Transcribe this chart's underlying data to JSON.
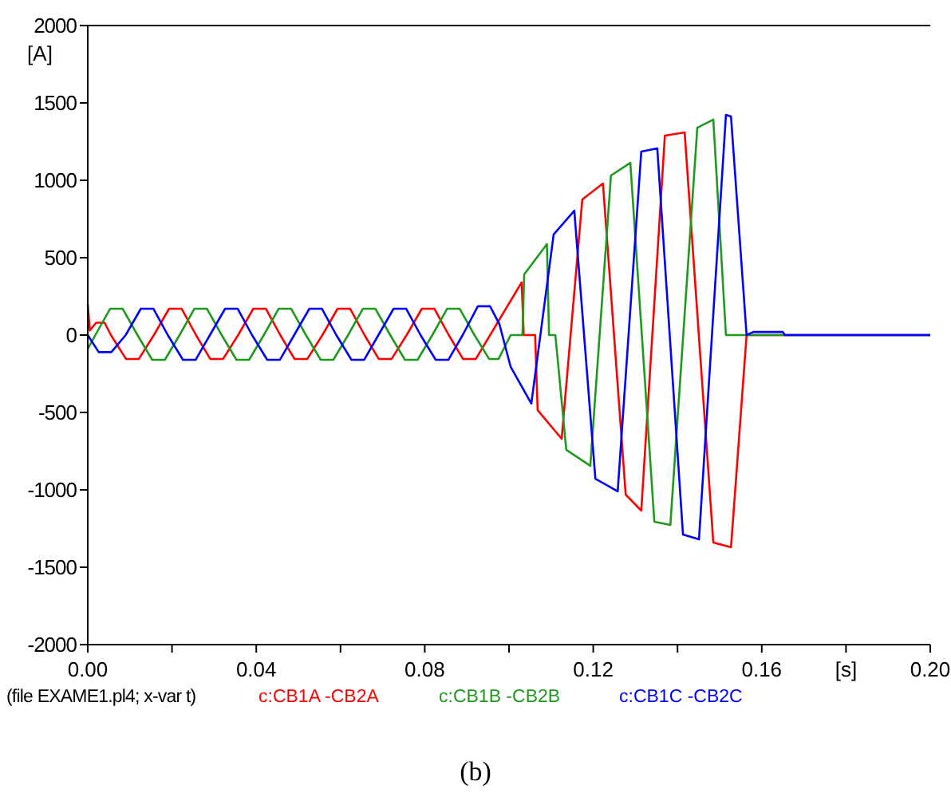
{
  "chart_data": {
    "type": "line",
    "xlabel": "[s]",
    "ylabel": "[A]",
    "xlim": [
      0,
      0.2
    ],
    "ylim": [
      -2000,
      2000
    ],
    "xticks": [
      {
        "value": 0,
        "label": "0.00"
      },
      {
        "value": 0.02,
        "label": null
      },
      {
        "value": 0.04,
        "label": "0.04"
      },
      {
        "value": 0.06,
        "label": null
      },
      {
        "value": 0.08,
        "label": "0.08"
      },
      {
        "value": 0.1,
        "label": null
      },
      {
        "value": 0.12,
        "label": "0.12"
      },
      {
        "value": 0.14,
        "label": null
      },
      {
        "value": 0.16,
        "label": "0.16"
      },
      {
        "value": 0.18,
        "label": null
      },
      {
        "value": 0.2,
        "label": "0.20"
      }
    ],
    "yticks": [
      -2000,
      -1500,
      -1000,
      -500,
      0,
      500,
      1000,
      1500,
      2000
    ],
    "grid": false,
    "legend": "bottom",
    "marker": "none",
    "line_style": "solid",
    "annotations": [
      "(file EXAME1.pl4; x-var t)",
      "(b)"
    ],
    "series": [
      {
        "name": "c:CB1A -CB2A",
        "color": "#ff0000",
        "x": [
          0,
          0.0005,
          0.002,
          0.004,
          0.0055,
          0.0091,
          0.0121,
          0.0157,
          0.0193,
          0.0223,
          0.0257,
          0.0291,
          0.0321,
          0.0357,
          0.0393,
          0.0423,
          0.0457,
          0.0491,
          0.0521,
          0.0557,
          0.0593,
          0.0623,
          0.0657,
          0.0691,
          0.0721,
          0.0757,
          0.0793,
          0.0823,
          0.0857,
          0.0891,
          0.0921,
          0.103,
          0.1035,
          0.1062,
          0.1068,
          0.1125,
          0.1174,
          0.1223,
          0.1277,
          0.1314,
          0.137,
          0.1417,
          0.1485,
          0.1527,
          0.1564,
          0.2
        ],
        "values": [
          200,
          30,
          80,
          80,
          0,
          -155,
          -155,
          0,
          170,
          170,
          0,
          -155,
          -155,
          0,
          170,
          170,
          0,
          -155,
          -155,
          0,
          170,
          170,
          0,
          -155,
          -155,
          0,
          170,
          170,
          0,
          -155,
          -155,
          340,
          0,
          0,
          -485,
          -670,
          876,
          979,
          -1031,
          -1134,
          1289,
          1309,
          -1340,
          -1371,
          0,
          0
        ]
      },
      {
        "name": "c:CB1B -CB2B",
        "color": "#1f9a1f",
        "x": [
          0,
          0.0018,
          0.0053,
          0.0083,
          0.0118,
          0.0153,
          0.0183,
          0.0218,
          0.0253,
          0.0283,
          0.0318,
          0.0353,
          0.0383,
          0.0418,
          0.0453,
          0.0483,
          0.0518,
          0.0553,
          0.0583,
          0.0618,
          0.0653,
          0.0683,
          0.0718,
          0.0753,
          0.0783,
          0.0818,
          0.0853,
          0.0883,
          0.0918,
          0.0953,
          0.0975,
          0.1004,
          0.1032,
          0.1036,
          0.109,
          0.1095,
          0.111,
          0.1136,
          0.1193,
          0.1242,
          0.1288,
          0.1345,
          0.1383,
          0.1447,
          0.1485,
          0.1515,
          0.2
        ],
        "values": [
          -90,
          0,
          170,
          170,
          0,
          -160,
          -160,
          0,
          170,
          170,
          0,
          -160,
          -160,
          0,
          170,
          170,
          0,
          -160,
          -160,
          0,
          170,
          170,
          0,
          -160,
          -160,
          0,
          170,
          170,
          0,
          -155,
          -155,
          0,
          0,
          392,
          588,
          0,
          0,
          -742,
          -845,
          1031,
          1113,
          -1206,
          -1227,
          1340,
          1392,
          0,
          0
        ]
      },
      {
        "name": "c:CB1C -CB2C",
        "color": "#0000ff",
        "x": [
          0,
          0.0026,
          0.0056,
          0.009,
          0.0126,
          0.0156,
          0.019,
          0.0226,
          0.0256,
          0.029,
          0.0326,
          0.0356,
          0.039,
          0.0426,
          0.0456,
          0.049,
          0.0526,
          0.0556,
          0.059,
          0.0626,
          0.0656,
          0.069,
          0.0726,
          0.0756,
          0.079,
          0.0826,
          0.0856,
          0.089,
          0.0926,
          0.0955,
          0.0977,
          0.1004,
          0.1053,
          0.1106,
          0.1155,
          0.1205,
          0.1258,
          0.1314,
          0.1352,
          0.1413,
          0.1451,
          0.1515,
          0.1527,
          0.1564,
          0.158,
          0.165,
          0.1655,
          0.2
        ],
        "values": [
          0,
          -110,
          -110,
          0,
          170,
          170,
          0,
          -160,
          -160,
          0,
          170,
          170,
          0,
          -160,
          -160,
          0,
          170,
          170,
          0,
          -160,
          -160,
          0,
          170,
          170,
          0,
          -160,
          -160,
          0,
          186,
          186,
          72,
          -206,
          -443,
          650,
          804,
          -928,
          -1010,
          1186,
          1206,
          -1289,
          -1320,
          1423,
          1412,
          0,
          20,
          20,
          0,
          0
        ]
      }
    ]
  }
}
